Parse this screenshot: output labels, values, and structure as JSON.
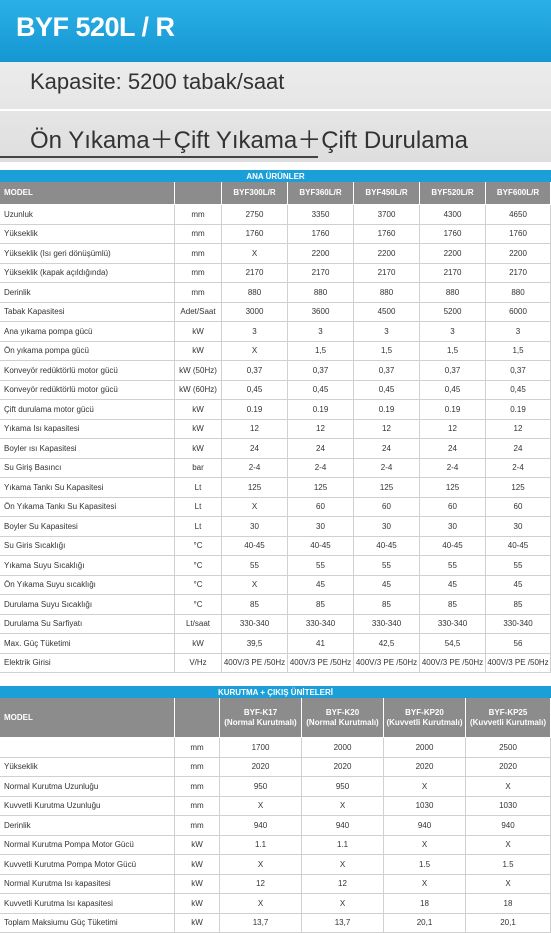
{
  "header": {
    "title": "BYF 520L / R",
    "capacity": "Kapasite: 5200 tabak/saat",
    "features": "Ön Yıkama＋Çift Yıkama＋Çift Durulama"
  },
  "tables": [
    {
      "title": "ANA ÜRÜNLER",
      "model_label": "MODEL",
      "models": [
        "BYF300L/R",
        "BYF360L/R",
        "BYF450L/R",
        "BYF520L/R",
        "BYF600L/R"
      ],
      "rows": [
        [
          "Uzunluk",
          "mm",
          "2750",
          "3350",
          "3700",
          "4300",
          "4650"
        ],
        [
          "Yükseklik",
          "mm",
          "1760",
          "1760",
          "1760",
          "1760",
          "1760"
        ],
        [
          "Yükseklik (Isı geri dönüşümlü)",
          "mm",
          "X",
          "2200",
          "2200",
          "2200",
          "2200"
        ],
        [
          "Yükseklik (kapak açıldığında)",
          "mm",
          "2170",
          "2170",
          "2170",
          "2170",
          "2170"
        ],
        [
          "Derinlik",
          "mm",
          "880",
          "880",
          "880",
          "880",
          "880"
        ],
        [
          "Tabak Kapasitesi",
          "Adet/Saat",
          "3000",
          "3600",
          "4500",
          "5200",
          "6000"
        ],
        [
          "Ana yıkama pompa gücü",
          "kW",
          "3",
          "3",
          "3",
          "3",
          "3"
        ],
        [
          "Ön yıkama pompa gücü",
          "kW",
          "X",
          "1,5",
          "1,5",
          "1,5",
          "1,5"
        ],
        [
          "Konveyör redüktörlü motor gücü",
          "kW (50Hz)",
          "0,37",
          "0,37",
          "0,37",
          "0,37",
          "0,37"
        ],
        [
          "Konveyör redüktörlü motor gücü",
          "kW (60Hz)",
          "0,45",
          "0,45",
          "0,45",
          "0,45",
          "0,45"
        ],
        [
          "Çift durulama motor gücü",
          "kW",
          "0.19",
          "0.19",
          "0.19",
          "0.19",
          "0.19"
        ],
        [
          "Yıkama Isı kapasitesi",
          "kW",
          "12",
          "12",
          "12",
          "12",
          "12"
        ],
        [
          "Boyler ısı Kapasitesi",
          "kW",
          "24",
          "24",
          "24",
          "24",
          "24"
        ],
        [
          "Su Giriş Basıncı",
          "bar",
          "2-4",
          "2-4",
          "2-4",
          "2-4",
          "2-4"
        ],
        [
          "Yıkama Tankı Su Kapasitesi",
          "Lt",
          "125",
          "125",
          "125",
          "125",
          "125"
        ],
        [
          "Ön Yıkama Tankı Su Kapasitesi",
          "Lt",
          "X",
          "60",
          "60",
          "60",
          "60"
        ],
        [
          "Boyler Su Kapasitesi",
          "Lt",
          "30",
          "30",
          "30",
          "30",
          "30"
        ],
        [
          "Su Giris Sıcaklığı",
          "°C",
          "40-45",
          "40-45",
          "40-45",
          "40-45",
          "40-45"
        ],
        [
          "Yıkama Suyu Sıcaklığı",
          "°C",
          "55",
          "55",
          "55",
          "55",
          "55"
        ],
        [
          "Ön Yıkama Suyu sıcaklığı",
          "°C",
          "X",
          "45",
          "45",
          "45",
          "45"
        ],
        [
          "Durulama Suyu Sıcaklığı",
          "°C",
          "85",
          "85",
          "85",
          "85",
          "85"
        ],
        [
          "Durulama Su Sarfiyatı",
          "Lt/saat",
          "330-340",
          "330-340",
          "330-340",
          "330-340",
          "330-340"
        ],
        [
          "Max. Güç Tüketimi",
          "kW",
          "39,5",
          "41",
          "42,5",
          "54,5",
          "56"
        ],
        [
          "Elektrik Girisi",
          "V/Hz",
          "400V/3 PE /50Hz",
          "400V/3 PE /50Hz",
          "400V/3 PE /50Hz",
          "400V/3 PE /50Hz",
          "400V/3 PE /50Hz"
        ]
      ]
    },
    {
      "title": "KURUTMA + ÇIKIŞ ÜNİTELERİ",
      "model_label": "MODEL",
      "models": [
        {
          "name": "BYF-K17",
          "type": "(Normal Kurutmalı)"
        },
        {
          "name": "BYF-K20",
          "type": "(Normal Kurutmalı)"
        },
        {
          "name": "BYF-KP20",
          "type": "(Kuvvetli Kurutmalı)"
        },
        {
          "name": "BYF-KP25",
          "type": "(Kuvvetli Kurutmalı)"
        }
      ],
      "rows": [
        [
          null,
          "mm",
          "1700",
          "2000",
          "2000",
          "2500"
        ],
        [
          "Yükseklik",
          "mm",
          "2020",
          "2020",
          "2020",
          "2020"
        ],
        [
          "Normal Kurutma Uzunluğu",
          "mm",
          "950",
          "950",
          "X",
          "X"
        ],
        [
          "Kuvvetli Kurutma Uzunluğu",
          "mm",
          "X",
          "X",
          "1030",
          "1030"
        ],
        [
          "Derinlik",
          "mm",
          "940",
          "940",
          "940",
          "940"
        ],
        [
          "Normal Kurutma Pompa Motor Gücü",
          "kW",
          "1.1",
          "1.1",
          "X",
          "X"
        ],
        [
          "Kuvvetli Kurutma Pompa Motor Gücü",
          "kW",
          "X",
          "X",
          "1.5",
          "1.5"
        ],
        [
          "Normal Kurutma Isı kapasitesi",
          "kW",
          "12",
          "12",
          "X",
          "X"
        ],
        [
          "Kuvvetli Kurutma Isı kapasitesi",
          "kW",
          "X",
          "X",
          "18",
          "18"
        ],
        [
          "Toplam Maksiumu Güç Tüketimi",
          "kW",
          "13,7",
          "13,7",
          "20,1",
          "20,1"
        ]
      ]
    }
  ]
}
